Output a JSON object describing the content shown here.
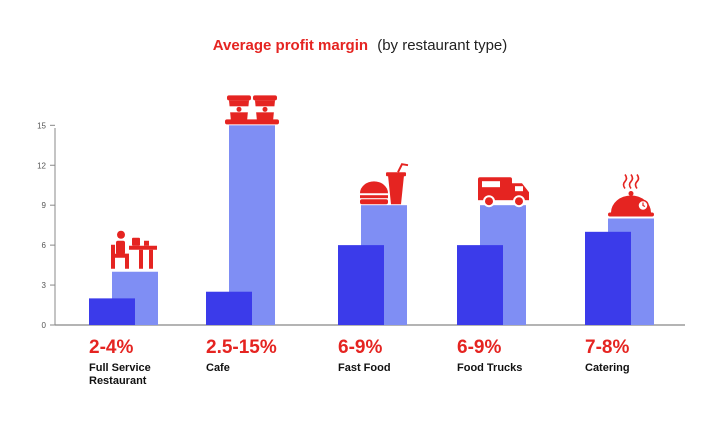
{
  "chart_data": {
    "type": "bar",
    "title": "Average profit margin",
    "subtitle": "(by restaurant type)",
    "xlabel": "",
    "ylabel": "",
    "ylim": [
      0,
      16
    ],
    "yticks": [
      0,
      3,
      6,
      9,
      12,
      15
    ],
    "grid": false,
    "legend": "none",
    "categories": [
      {
        "name_lines": [
          "Full Service",
          "Restaurant"
        ],
        "range": "2-4%",
        "icon": "restaurant-table-icon"
      },
      {
        "name_lines": [
          "Cafe"
        ],
        "range": "2.5-15%",
        "icon": "coffee-cups-icon"
      },
      {
        "name_lines": [
          "Fast Food"
        ],
        "range": "6-9%",
        "icon": "burger-drink-icon"
      },
      {
        "name_lines": [
          "Food Trucks"
        ],
        "range": "6-9%",
        "icon": "food-truck-icon"
      },
      {
        "name_lines": [
          "Catering"
        ],
        "range": "7-8%",
        "icon": "cloche-icon"
      }
    ],
    "series": [
      {
        "values": [
          2,
          2.5,
          6,
          6,
          7
        ]
      },
      {
        "values": [
          4,
          15,
          9,
          9,
          8
        ]
      }
    ]
  },
  "colors": {
    "low": "#3b3bea",
    "high": "#7f8ef4",
    "accent": "#e52421",
    "axis": "#888888"
  }
}
